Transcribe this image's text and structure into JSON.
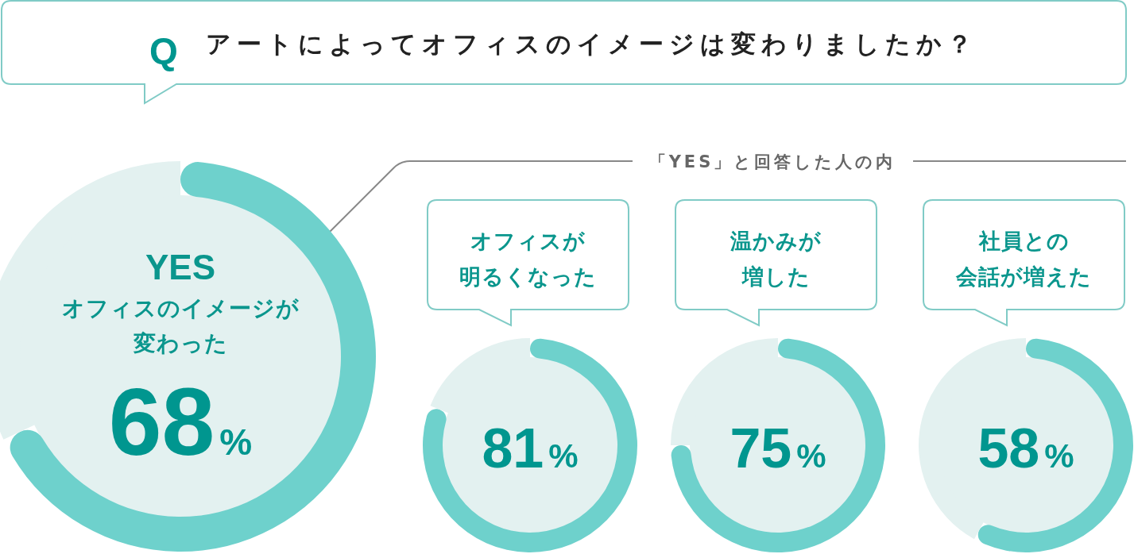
{
  "chart_data": [
    {
      "type": "donut",
      "title": "アートによってオフィスのイメージは変わりましたか？",
      "subtitle": "オフィスのイメージが変わった",
      "annotations": [
        "Q",
        "「YES」と回答した人の内"
      ],
      "categories": [
        "YES",
        null
      ],
      "values": [
        68,
        32
      ],
      "colors": [
        "#6ed1cc",
        "#e3f1f0"
      ],
      "value_labels": [
        "68%",
        null
      ]
    },
    {
      "type": "donut",
      "categories": [
        "オフィスが明るくなった",
        null
      ],
      "values": [
        81,
        19
      ],
      "colors": [
        "#6ed1cc",
        "#e3f1f0"
      ],
      "value_labels": [
        "81%",
        null
      ]
    },
    {
      "type": "donut",
      "categories": [
        "温かみが増した",
        null
      ],
      "values": [
        75,
        25
      ],
      "colors": [
        "#6ed1cc",
        "#e3f1f0"
      ],
      "value_labels": [
        "75%",
        null
      ]
    },
    {
      "type": "donut",
      "categories": [
        "社員との会話が増えた",
        null
      ],
      "values": [
        58,
        42
      ],
      "colors": [
        "#6ed1cc",
        "#e3f1f0"
      ],
      "value_labels": [
        "58%",
        null
      ]
    }
  ]
}
